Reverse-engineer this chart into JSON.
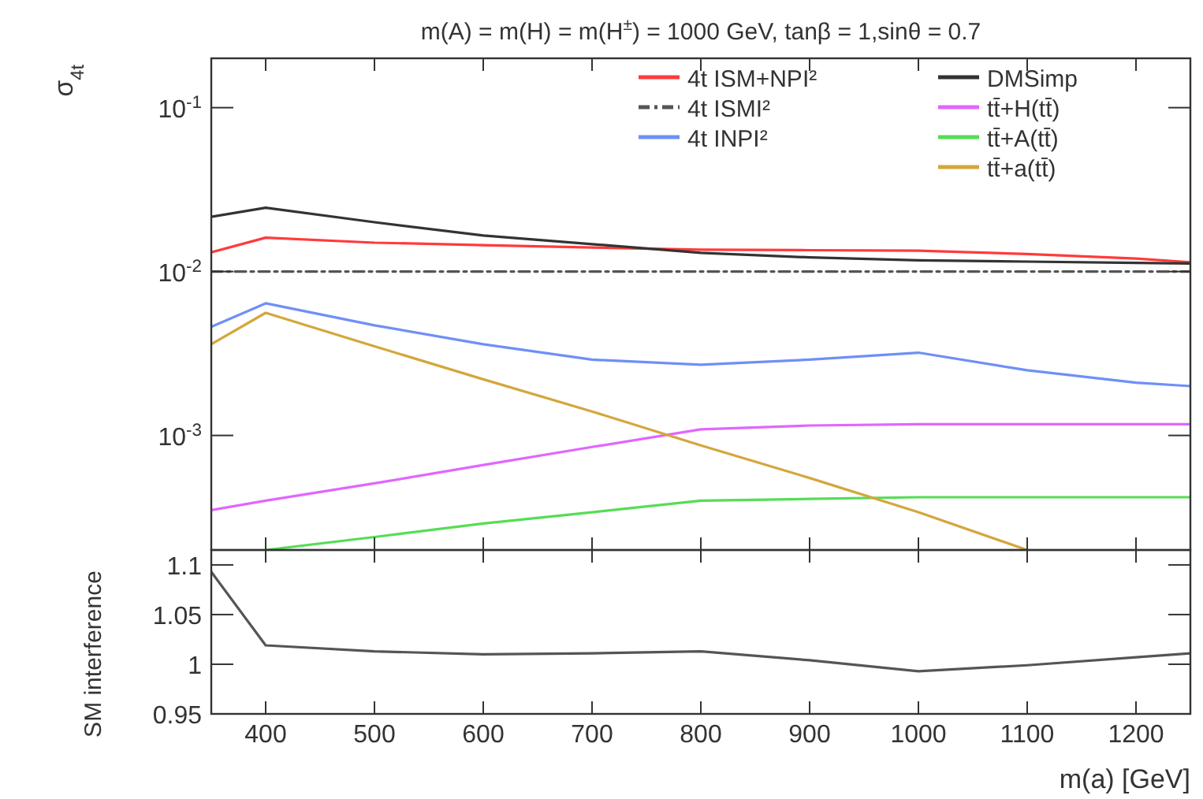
{
  "chart_data": [
    {
      "type": "line",
      "title": "m(A) = m(H) = m(H$^{±}$) = 1000 GeV, tanβ = 1,sinθ = 0.7",
      "ylabel": "σ$_{4t}$",
      "log": "y",
      "xlim": [
        350,
        1250
      ],
      "xticks": [
        400,
        500,
        600,
        700,
        800,
        900,
        1000,
        1100,
        1200
      ],
      "ylim": [
        0.0002,
        0.2
      ],
      "yticks": [
        {
          "value": 0.1,
          "label": "10$^{-1}$"
        },
        {
          "value": 0.01,
          "label": "10$^{-2}$"
        },
        {
          "value": 0.001,
          "label": "10$^{-3}$"
        }
      ],
      "tick_labels": "y",
      "legend": "top right",
      "grid": false,
      "marker": "none",
      "x": [
        350,
        400,
        500,
        600,
        700,
        800,
        900,
        1000,
        1100,
        1200,
        1250
      ],
      "series": [
        {
          "name": "4t  ISM+NPI²",
          "color": "#ff3b3b",
          "values": [
            0.0131,
            0.0161,
            0.015,
            0.0145,
            0.014,
            0.0136,
            0.0135,
            0.0134,
            0.0128,
            0.012,
            0.0114
          ]
        },
        {
          "name": "4t  ISMI²",
          "color": "#555555",
          "line_style": "dashed",
          "values": [
            0.01,
            0.01,
            0.01,
            0.01,
            0.01,
            0.01,
            0.01,
            0.01,
            0.01,
            0.01,
            0.01
          ]
        },
        {
          "name": "4t  INPI²",
          "color": "#6f8ff7",
          "values": [
            0.0046,
            0.0064,
            0.0047,
            0.0036,
            0.0029,
            0.0027,
            0.0029,
            0.0032,
            0.0025,
            0.0021,
            0.002
          ]
        },
        {
          "name": "DMSimp",
          "color": "#333333",
          "values": [
            0.0216,
            0.0245,
            0.02,
            0.0166,
            0.0147,
            0.013,
            0.0122,
            0.0117,
            0.0115,
            0.0113,
            0.0112
          ]
        },
        {
          "name": "tt̄+H(tt̄)",
          "color": "#e066ff",
          "values": [
            0.00035,
            0.0004,
            0.00051,
            0.00066,
            0.00085,
            0.00109,
            0.00115,
            0.00117,
            0.00117,
            0.00117,
            0.00117
          ]
        },
        {
          "name": "tt̄+A(tt̄)",
          "color": "#55dd55",
          "values": [
            null,
            0.0002,
            0.00024,
            0.00029,
            0.00034,
            0.0004,
            0.00041,
            0.00042,
            0.00042,
            0.00042,
            0.00042
          ]
        },
        {
          "name": "tt̄+a(tt̄)",
          "color": "#d4a63c",
          "values": [
            0.0036,
            0.0056,
            0.0035,
            0.0022,
            0.0014,
            0.00087,
            0.00055,
            0.00034,
            0.0002,
            null,
            null
          ]
        }
      ]
    },
    {
      "type": "line",
      "xlabel": "m(a) [GeV]",
      "ylabel": "SM interference",
      "xlim": [
        350,
        1250
      ],
      "xticks": [
        400,
        500,
        600,
        700,
        800,
        900,
        1000,
        1100,
        1200
      ],
      "ylim": [
        0.95,
        1.115
      ],
      "yticks": [
        0.95,
        {
          "value": 1,
          "label": "1"
        },
        1.05,
        1.1
      ],
      "grid": false,
      "legend": false,
      "marker": "none",
      "x": [
        350,
        400,
        500,
        600,
        700,
        800,
        900,
        1000,
        1100,
        1200,
        1250
      ],
      "series": [
        {
          "color": "#555555",
          "values": [
            1.093,
            1.019,
            1.013,
            1.01,
            1.011,
            1.013,
            1.004,
            0.993,
            0.999,
            1.007,
            1.011
          ]
        }
      ]
    }
  ]
}
